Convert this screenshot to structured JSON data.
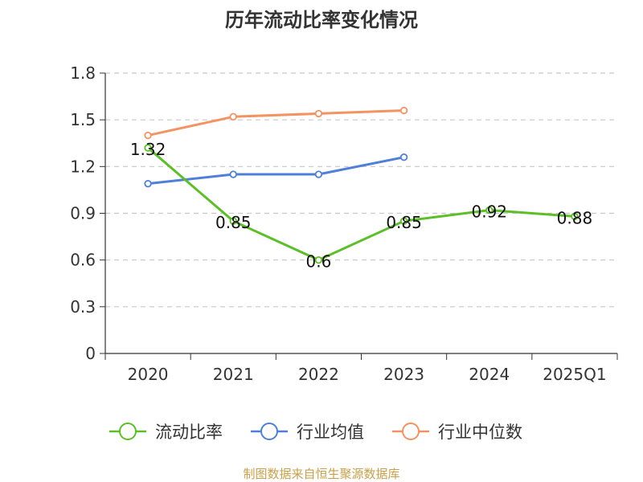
{
  "chart_data": {
    "type": "line",
    "title": "历年流动比率变化情况",
    "categories": [
      "2020",
      "2021",
      "2022",
      "2023",
      "2024",
      "2025Q1"
    ],
    "ylim": [
      0,
      1.8
    ],
    "yticks": [
      "0",
      "0.3",
      "0.6",
      "0.9",
      "1.2",
      "1.5",
      "1.8"
    ],
    "grid": true,
    "legend_position": "bottom",
    "series": [
      {
        "name": "流动比率",
        "color": "#5cbf27",
        "values": [
          1.32,
          0.85,
          0.6,
          0.85,
          0.92,
          0.88
        ],
        "labels": [
          "1.32",
          "0.85",
          "0.6",
          "0.85",
          "0.92",
          "0.88"
        ]
      },
      {
        "name": "行业均值",
        "color": "#4f7fdb",
        "values": [
          1.09,
          1.15,
          1.15,
          1.26,
          null,
          null
        ]
      },
      {
        "name": "行业中位数",
        "color": "#f59262",
        "values": [
          1.4,
          1.52,
          1.54,
          1.56,
          null,
          null
        ]
      }
    ],
    "source": "制图数据来自恒生聚源数据库"
  }
}
